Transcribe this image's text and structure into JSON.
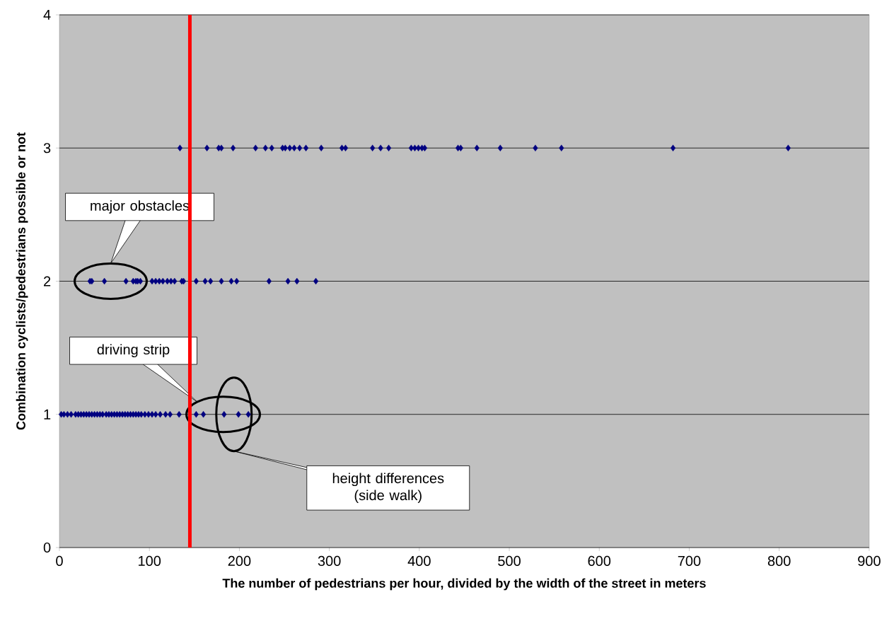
{
  "chart_data": {
    "type": "scatter",
    "xlabel": "The number of pedestrians per hour, divided by the width of the street in meters",
    "ylabel": "Combination cyclists/pedestrians possible or not",
    "xlim": [
      0,
      900
    ],
    "ylim": [
      0,
      4
    ],
    "xticks": [
      0,
      100,
      200,
      300,
      400,
      500,
      600,
      700,
      800,
      900
    ],
    "yticks": [
      0,
      1,
      2,
      3,
      4
    ],
    "grid": "y",
    "marker": "diamond",
    "series": [
      {
        "color": "#000080",
        "x": [
          134,
          164,
          177,
          180,
          193,
          218,
          229,
          236,
          248,
          251,
          256,
          261,
          267,
          274,
          291,
          314,
          318,
          348,
          357,
          366,
          391,
          395,
          399,
          403,
          406,
          443,
          446,
          464,
          490,
          529,
          558,
          682,
          810
        ],
        "values": [
          3,
          3,
          3,
          3,
          3,
          3,
          3,
          3,
          3,
          3,
          3,
          3,
          3,
          3,
          3,
          3,
          3,
          3,
          3,
          3,
          3,
          3,
          3,
          3,
          3,
          3,
          3,
          3,
          3,
          3,
          3,
          3,
          3
        ]
      },
      {
        "color": "#000080",
        "x": [
          34,
          36,
          50,
          74,
          82,
          85,
          87,
          90,
          103,
          107,
          111,
          115,
          120,
          124,
          128,
          136,
          138,
          152,
          162,
          168,
          180,
          191,
          197,
          233,
          254,
          264,
          285
        ],
        "values": [
          2,
          2,
          2,
          2,
          2,
          2,
          2,
          2,
          2,
          2,
          2,
          2,
          2,
          2,
          2,
          2,
          2,
          2,
          2,
          2,
          2,
          2,
          2,
          2,
          2,
          2,
          2
        ]
      },
      {
        "color": "#000080",
        "x": [
          2,
          5,
          9,
          13,
          18,
          21,
          24,
          27,
          30,
          33,
          36,
          39,
          42,
          45,
          48,
          52,
          55,
          58,
          61,
          64,
          67,
          70,
          73,
          76,
          79,
          82,
          85,
          88,
          91,
          95,
          99,
          103,
          107,
          112,
          118,
          123,
          133,
          152,
          160,
          183,
          199,
          210
        ],
        "values": [
          1,
          1,
          1,
          1,
          1,
          1,
          1,
          1,
          1,
          1,
          1,
          1,
          1,
          1,
          1,
          1,
          1,
          1,
          1,
          1,
          1,
          1,
          1,
          1,
          1,
          1,
          1,
          1,
          1,
          1,
          1,
          1,
          1,
          1,
          1,
          1,
          1,
          1,
          1,
          1,
          1,
          1
        ]
      }
    ],
    "ref_lines": [
      {
        "axis": "x",
        "value": 145,
        "color": "#ff0000"
      }
    ],
    "annotations": [
      "major obstacles",
      "driving strip",
      "height differences (side walk)"
    ]
  }
}
